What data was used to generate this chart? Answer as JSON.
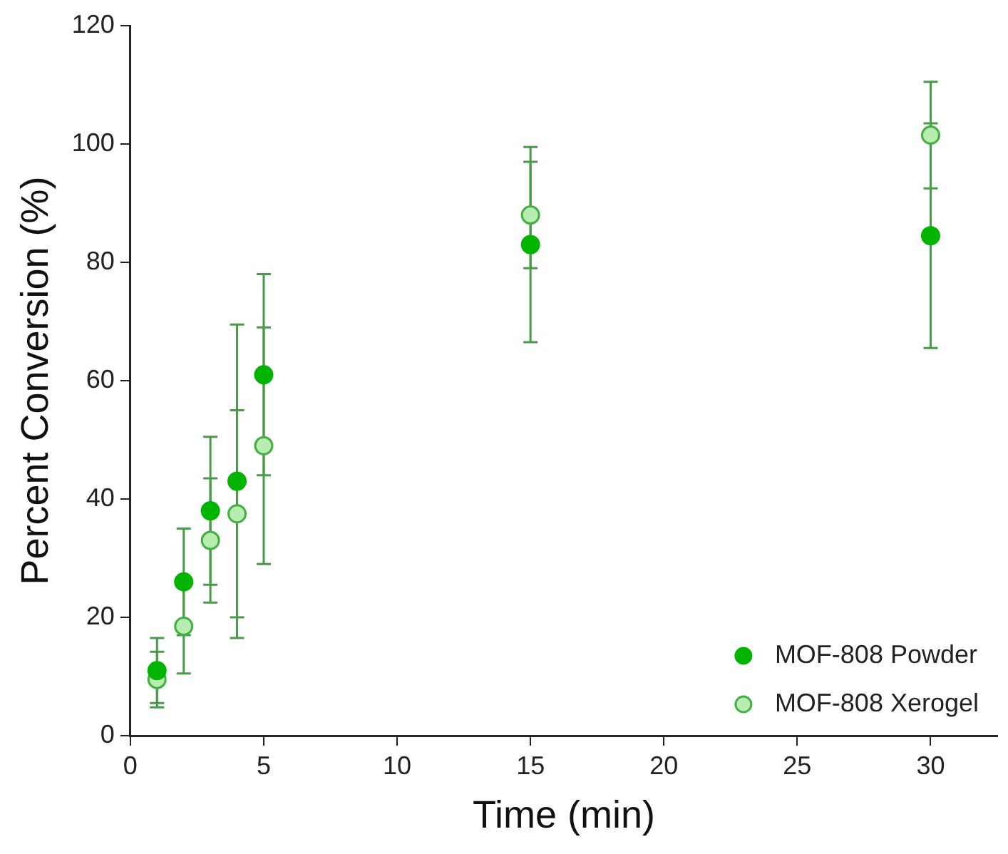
{
  "chart_data": {
    "type": "scatter",
    "xlabel": "Time (min)",
    "ylabel": "Percent Conversion (%)",
    "xlim": [
      0,
      32.5
    ],
    "xticks": [
      0,
      5,
      10,
      15,
      20,
      25,
      30
    ],
    "ylim": [
      0,
      120
    ],
    "yticks": [
      0,
      20,
      40,
      60,
      80,
      100,
      120
    ],
    "grid": false,
    "legend": "bottom right",
    "marker": "circle",
    "series": [
      {
        "name": "MOF-808 Powder",
        "color": "#00b400",
        "x": [
          1,
          2,
          3,
          4,
          5,
          15,
          30
        ],
        "values": [
          11,
          26,
          38,
          43,
          61,
          83,
          84.5
        ],
        "errors": [
          5.5,
          9,
          12.5,
          26.5,
          17,
          16.5,
          19
        ]
      },
      {
        "name": "MOF-808 Xerogel",
        "color": "#b8ecb0",
        "x": [
          1,
          2,
          3,
          4,
          5,
          15,
          30
        ],
        "values": [
          9.5,
          18.5,
          33,
          37.5,
          49,
          88,
          101.5
        ],
        "errors": [
          4.7,
          8,
          10.5,
          17.5,
          20,
          9,
          9
        ]
      }
    ]
  }
}
